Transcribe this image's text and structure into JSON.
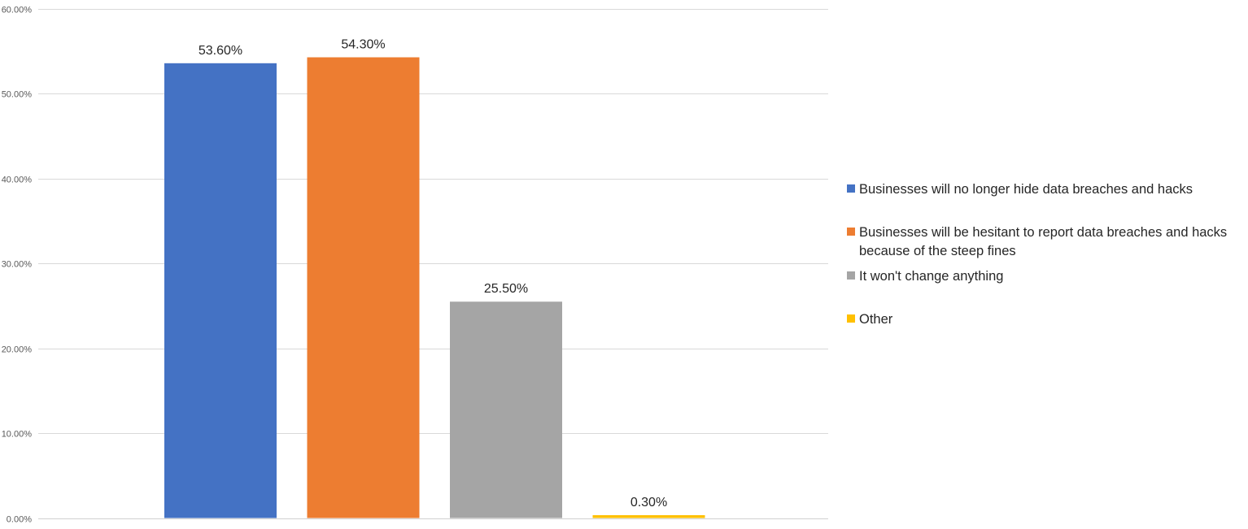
{
  "chart_data": {
    "type": "bar",
    "categories": [
      "Businesses will no longer hide data breaches and hacks",
      "Businesses will be hesitant to report data breaches and hacks because of the steep fines",
      "It won't change anything",
      "Other"
    ],
    "values": [
      53.6,
      54.3,
      25.5,
      0.3
    ],
    "data_labels": [
      "53.60%",
      "54.30%",
      "25.50%",
      "0.30%"
    ],
    "colors": [
      "#4472C4",
      "#ED7D31",
      "#A5A5A5",
      "#FFC000"
    ],
    "ylim": [
      0,
      60
    ],
    "yticks": [
      0,
      10,
      20,
      30,
      40,
      50,
      60
    ],
    "ytick_labels": [
      "0.00%",
      "10.00%",
      "20.00%",
      "30.00%",
      "40.00%",
      "50.00%",
      "60.00%"
    ],
    "grid": true,
    "legend_position": "right",
    "title": "",
    "xlabel": "",
    "ylabel": ""
  },
  "legend": {
    "items": [
      {
        "label": "Businesses will no longer hide data breaches and hacks",
        "color": "#4472C4"
      },
      {
        "label": "Businesses will be hesitant to report data breaches and hacks because of the steep fines",
        "color": "#ED7D31"
      },
      {
        "label": "It won't change anything",
        "color": "#A5A5A5"
      },
      {
        "label": "Other",
        "color": "#FFC000"
      }
    ]
  }
}
